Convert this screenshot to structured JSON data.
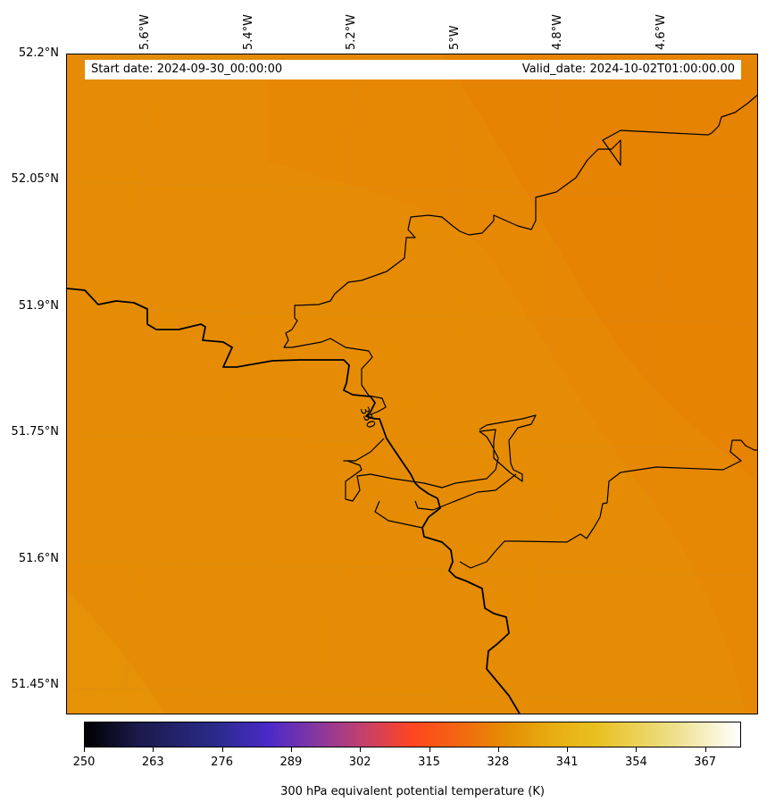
{
  "map": {
    "start_date_label": "Start date: 2024-09-30_00:00:00",
    "valid_date_label": "Valid_date: 2024-10-02T01:00:00.00",
    "contour_label": "330",
    "field_color": "#e58c04",
    "coastline_color": "#000000"
  },
  "longitude_labels": [
    "5.6°W",
    "5.4°W",
    "5.2°W",
    "5°W",
    "4.8°W",
    "4.6°W"
  ],
  "latitude_labels": [
    "52.2°N",
    "52.05°N",
    "51.9°N",
    "51.75°N",
    "51.6°N",
    "51.45°N"
  ],
  "colorbar": {
    "ticks": [
      "250",
      "263",
      "276",
      "289",
      "302",
      "315",
      "328",
      "341",
      "354",
      "367"
    ],
    "title": "300 hPa equivalent potential temperature (K)",
    "colormap": "CMRmap"
  }
}
